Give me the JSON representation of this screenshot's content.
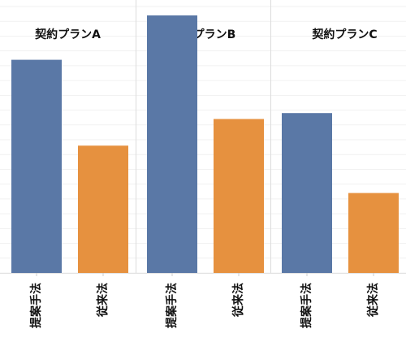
{
  "chart_data": {
    "type": "bar",
    "categories": [
      "提案手法",
      "従来法"
    ],
    "facets": [
      {
        "title": "契約プランA",
        "values": [
          72,
          43
        ]
      },
      {
        "title": "契約プランB",
        "values": [
          87,
          52
        ]
      },
      {
        "title": "契約プランC",
        "values": [
          54,
          27
        ]
      }
    ],
    "colors": [
      "#5a78a6",
      "#e6913f"
    ],
    "ylim": [
      0,
      90
    ],
    "grid": true,
    "legend": "none",
    "title": "",
    "xlabel": "",
    "ylabel": ""
  }
}
